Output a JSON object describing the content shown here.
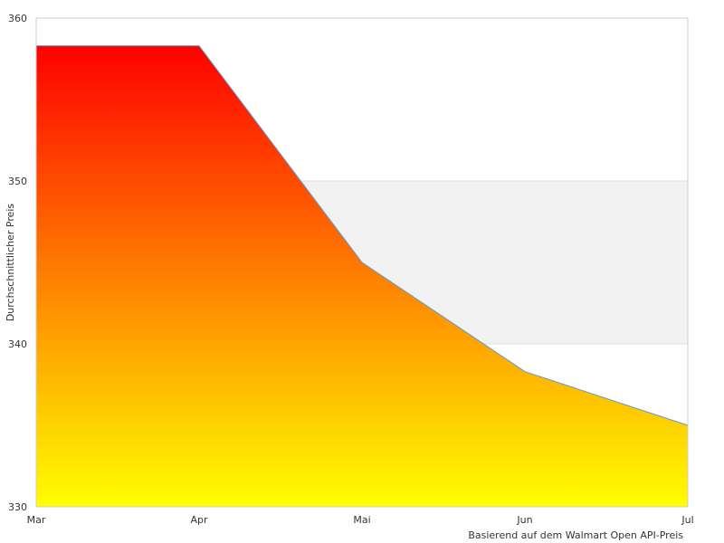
{
  "chart_data": {
    "type": "area",
    "categories": [
      "Mar",
      "Apr",
      "Mai",
      "Jun",
      "Jul"
    ],
    "series": [
      {
        "values": [
          358.3,
          358.3,
          345.0,
          338.3,
          335.0
        ]
      }
    ],
    "ylabel": "Durchschnittlicher Preis",
    "xlabel": "",
    "ylim": [
      330,
      360
    ],
    "yticks": [
      "330",
      "340",
      "350",
      "360"
    ],
    "grid": true,
    "band": [
      340,
      350
    ],
    "source_note": "Basierend auf dem Walmart Open API-Preis",
    "colors": {
      "gradient_top": "#ff0000",
      "gradient_bottom": "#ffff00",
      "line": "#5b9bd5",
      "band": "#f2f2f2",
      "grid": "#dddddd",
      "frame": "#cccccc"
    }
  }
}
